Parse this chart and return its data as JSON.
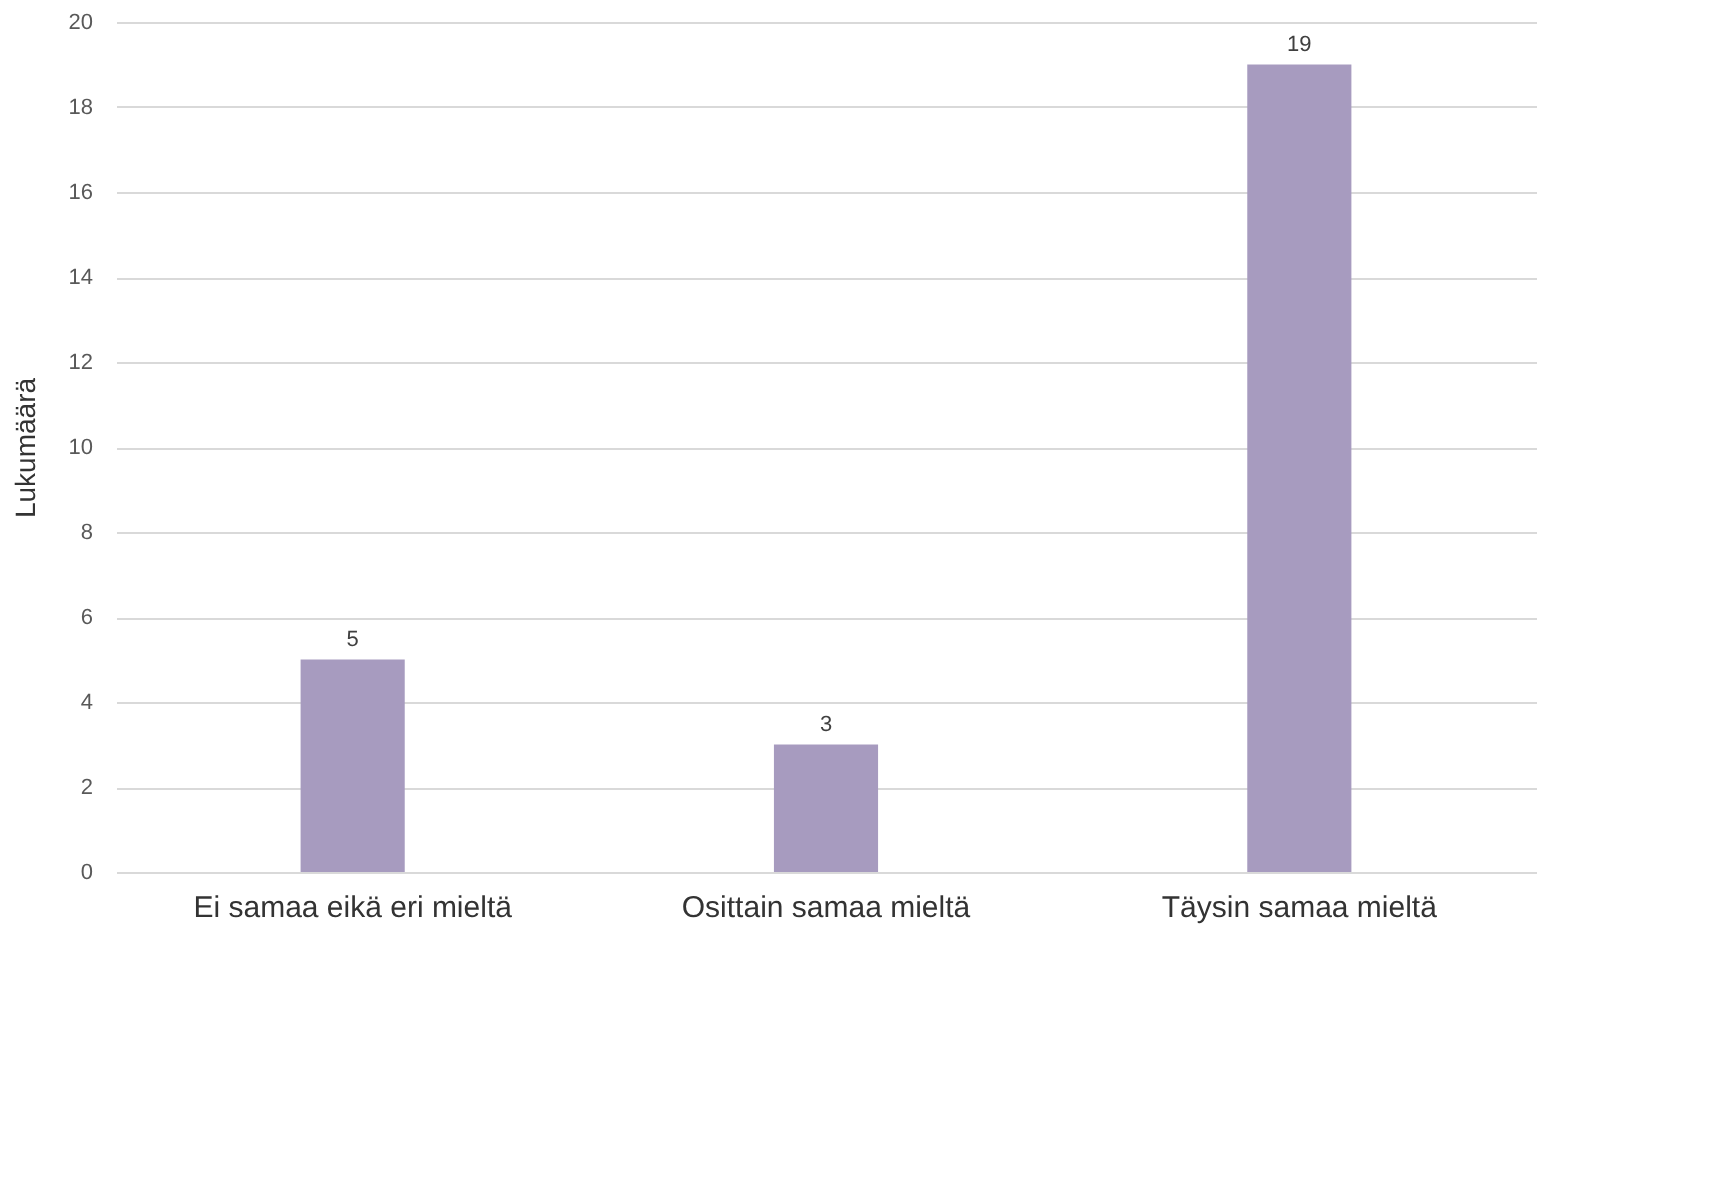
{
  "chart_data": {
    "type": "bar",
    "ylabel": "Lukumäärä",
    "categories": [
      "Ei samaa eikä eri mieltä",
      "Osittain samaa mieltä",
      "Täysin samaa mieltä"
    ],
    "values": [
      5,
      3,
      19
    ],
    "color": "#a79bbf",
    "ylim": [
      0,
      20
    ],
    "yticks": [
      0,
      2,
      4,
      6,
      8,
      10,
      12,
      14,
      16,
      18,
      20
    ],
    "grid": "y",
    "data_labels": true
  }
}
